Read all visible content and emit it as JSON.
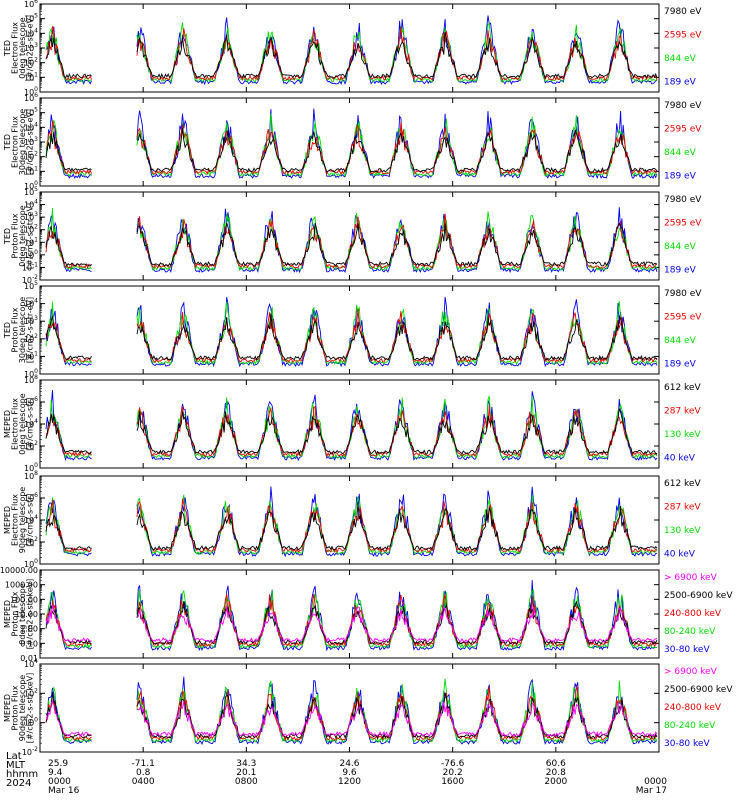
{
  "colors": {
    "blue": "#0000ee",
    "red": "#ee0000",
    "green": "#00dd00",
    "black": "#000000",
    "magenta": "#ff00ff"
  },
  "chart_data": [
    {
      "type": "line",
      "ylabel": [
        "TED",
        "Electron Flux",
        "0deg telescope",
        "[#/cm2-s-str-eV]"
      ],
      "ylog": true,
      "ytick_labels": [
        "10^6",
        "10^5",
        "10^4",
        "10^3",
        "10^2",
        "10^1",
        "10^0"
      ],
      "legend": [
        {
          "name": "7980 eV",
          "color": "#000000"
        },
        {
          "name": "2595 eV",
          "color": "#ee0000"
        },
        {
          "name": "844 eV",
          "color": "#00dd00"
        },
        {
          "name": "189 eV",
          "color": "#0000ee"
        }
      ]
    },
    {
      "type": "line",
      "ylabel": [
        "TED",
        "Electron Flux",
        "30deg telescope",
        "[#/cm2-s-str-eV]"
      ],
      "ylog": true,
      "ytick_labels": [
        "10^6",
        "10^5",
        "10^4",
        "10^3",
        "10^2",
        "10^1",
        "10^0"
      ],
      "legend": [
        {
          "name": "7980 eV",
          "color": "#000000"
        },
        {
          "name": "2595 eV",
          "color": "#ee0000"
        },
        {
          "name": "844 eV",
          "color": "#00dd00"
        },
        {
          "name": "189 eV",
          "color": "#0000ee"
        }
      ]
    },
    {
      "type": "line",
      "ylabel": [
        "TED",
        "Proton Flux",
        "0deg telescope",
        "[#/cm2-s-str-eV]"
      ],
      "ylog": true,
      "ytick_labels": [
        "10^5",
        "10^4",
        "10^3",
        "10^2",
        "10^1",
        "10^0",
        "10^-1",
        "10^-2"
      ],
      "legend": [
        {
          "name": "7980 eV",
          "color": "#000000"
        },
        {
          "name": "2595 eV",
          "color": "#ee0000"
        },
        {
          "name": "844 eV",
          "color": "#00dd00"
        },
        {
          "name": "189 eV",
          "color": "#0000ee"
        }
      ]
    },
    {
      "type": "line",
      "ylabel": [
        "TED",
        "Proton Flux",
        "30deg telescope",
        "[#/cm2-s-str-eV]"
      ],
      "ylog": true,
      "ytick_labels": [
        "10^5",
        "10^4",
        "10^3",
        "10^2",
        "10^1",
        "10^0"
      ],
      "legend": [
        {
          "name": "7980 eV",
          "color": "#000000"
        },
        {
          "name": "2595 eV",
          "color": "#ee0000"
        },
        {
          "name": "844 eV",
          "color": "#00dd00"
        },
        {
          "name": "189 eV",
          "color": "#0000ee"
        }
      ]
    },
    {
      "type": "line",
      "ylabel": [
        "MEPED",
        "Electron Flux",
        "0deg telescope",
        "[#/cm2-s-str]"
      ],
      "ylog": true,
      "ytick_labels": [
        "10^8",
        "10^6",
        "10^4",
        "10^2",
        "10^0"
      ],
      "legend": [
        {
          "name": "612 keV",
          "color": "#000000"
        },
        {
          "name": "287 keV",
          "color": "#ee0000"
        },
        {
          "name": "130 keV",
          "color": "#00dd00"
        },
        {
          "name": "40 keV",
          "color": "#0000ee"
        }
      ]
    },
    {
      "type": "line",
      "ylabel": [
        "MEPED",
        "Electron Flux",
        "90deg telescope",
        "[#/cm2-s-str]"
      ],
      "ylog": true,
      "ytick_labels": [
        "10^8",
        "10^6",
        "10^4",
        "10^2",
        "10^0"
      ],
      "legend": [
        {
          "name": "612 keV",
          "color": "#000000"
        },
        {
          "name": "287 keV",
          "color": "#ee0000"
        },
        {
          "name": "130 keV",
          "color": "#00dd00"
        },
        {
          "name": "40 keV",
          "color": "#0000ee"
        }
      ]
    },
    {
      "type": "line",
      "ylabel": [
        "MEPED",
        "Proton Flux",
        "0deg telescope",
        "[#/cm2-s-str-keV]"
      ],
      "ylog": true,
      "ytick_labels": [
        "10000.00",
        "1000.00",
        "100.00",
        "10.00",
        "1.00",
        "0.10",
        "0.01"
      ],
      "legend": [
        {
          "name": "> 6900 keV",
          "color": "#ff00ff"
        },
        {
          "name": "2500-6900 keV",
          "color": "#000000"
        },
        {
          "name": "240-800 keV",
          "color": "#ee0000"
        },
        {
          "name": "80-240 keV",
          "color": "#00dd00"
        },
        {
          "name": "30-80 keV",
          "color": "#0000ee"
        }
      ]
    },
    {
      "type": "line",
      "ylabel": [
        "MEPED",
        "Proton Flux",
        "90deg telescope",
        "[#/cm2-s-str-keV]"
      ],
      "ylog": true,
      "ytick_labels": [
        "10^4",
        "10^2",
        "10^0",
        "10^-2"
      ],
      "legend": [
        {
          "name": "> 6900 keV",
          "color": "#ff00ff"
        },
        {
          "name": "2500-6900 keV",
          "color": "#000000"
        },
        {
          "name": "240-800 keV",
          "color": "#ee0000"
        },
        {
          "name": "80-240 keV",
          "color": "#00dd00"
        },
        {
          "name": "30-80 keV",
          "color": "#0000ee"
        }
      ]
    }
  ],
  "xaxis": {
    "row_labels": [
      "Lat",
      "MLT",
      "hhmm",
      "2024"
    ],
    "ticks": [
      {
        "lat": "25.9",
        "mlt": "9.4",
        "hhmm": "0000",
        "date": "Mar 16"
      },
      {
        "lat": "-71.1",
        "mlt": "0.8",
        "hhmm": "0400",
        "date": ""
      },
      {
        "lat": "34.3",
        "mlt": "20.1",
        "hhmm": "0800",
        "date": ""
      },
      {
        "lat": "24.6",
        "mlt": "9.6",
        "hhmm": "1200",
        "date": ""
      },
      {
        "lat": "-76.6",
        "mlt": "20.2",
        "hhmm": "1600",
        "date": ""
      },
      {
        "lat": "60.6",
        "mlt": "20.8",
        "hhmm": "2000",
        "date": ""
      },
      {
        "lat": "",
        "mlt": "",
        "hhmm": "0000",
        "date": "Mar 17"
      }
    ]
  }
}
